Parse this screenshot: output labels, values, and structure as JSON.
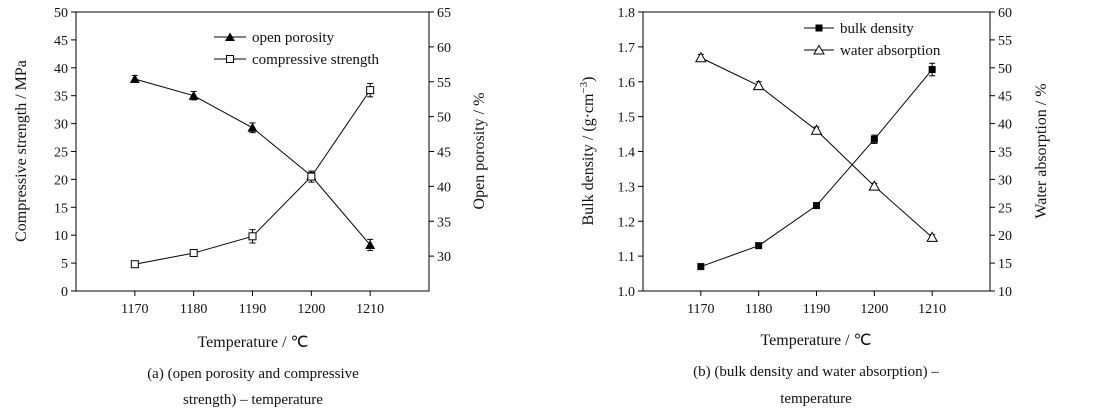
{
  "chart_data": [
    {
      "type": "line",
      "panel": "a",
      "x": [
        1170,
        1180,
        1190,
        1200,
        1210
      ],
      "xlim": [
        1160,
        1220
      ],
      "xticks": [
        1170,
        1180,
        1190,
        1200,
        1210
      ],
      "xlabel": "Temperature / ℃",
      "ylabel_left": "Compressive strength / MPa",
      "ylim_left": [
        0,
        50
      ],
      "yticks_left": [
        0,
        5,
        10,
        15,
        20,
        25,
        30,
        35,
        40,
        45,
        50
      ],
      "ylabel_right": "Open porosity / %",
      "ylim_right": [
        25,
        65
      ],
      "yticks_right": [
        30,
        35,
        40,
        45,
        50,
        55,
        60,
        65
      ],
      "series": [
        {
          "name": "open porosity",
          "axis": "right",
          "marker": "filled-triangle",
          "values": [
            55.4,
            53.0,
            48.4,
            41.5,
            31.6
          ],
          "err": [
            0.5,
            0.6,
            0.7,
            0.5,
            0.8
          ]
        },
        {
          "name": "compressive strength",
          "axis": "left",
          "marker": "open-square",
          "values": [
            4.8,
            6.8,
            9.8,
            20.5,
            36.0
          ],
          "err": [
            0.4,
            0.4,
            1.2,
            1.0,
            1.2
          ]
        }
      ],
      "legend": [
        "open porosity",
        "compressive strength"
      ],
      "caption_line1": "(a) (open porosity and compressive",
      "caption_line2": "strength) – temperature"
    },
    {
      "type": "line",
      "panel": "b",
      "x": [
        1170,
        1180,
        1190,
        1200,
        1210
      ],
      "xlim": [
        1160,
        1220
      ],
      "xticks": [
        1170,
        1180,
        1190,
        1200,
        1210
      ],
      "xlabel": "Temperature / ℃",
      "ylabel_left": "Bulk density  / (g·cm",
      "ylabel_left_sup": "−3",
      "ylabel_left_end": ")",
      "ylim_left": [
        1.0,
        1.8
      ],
      "yticks_left": [
        "1.0",
        "1.1",
        "1.2",
        "1.3",
        "1.4",
        "1.5",
        "1.6",
        "1.7",
        "1.8"
      ],
      "ylabel_right": "Water absorption / %",
      "ylim_right": [
        10,
        60
      ],
      "yticks_right": [
        10,
        15,
        20,
        25,
        30,
        35,
        40,
        45,
        50,
        55,
        60
      ],
      "series": [
        {
          "name": "bulk density",
          "axis": "left",
          "marker": "filled-square",
          "values": [
            1.07,
            1.13,
            1.245,
            1.435,
            1.635
          ],
          "err": [
            0.005,
            0.008,
            0.008,
            0.012,
            0.018
          ]
        },
        {
          "name": "water absorption",
          "axis": "right",
          "marker": "open-triangle",
          "values": [
            51.8,
            46.8,
            38.8,
            28.8,
            19.6
          ],
          "err": [
            0.6,
            0.7,
            0.6,
            0.5,
            0.5
          ]
        }
      ],
      "legend": [
        "bulk density",
        "water absorption"
      ],
      "caption_line1": "(b) (bulk density and water absorption) –",
      "caption_line2": "temperature"
    }
  ]
}
